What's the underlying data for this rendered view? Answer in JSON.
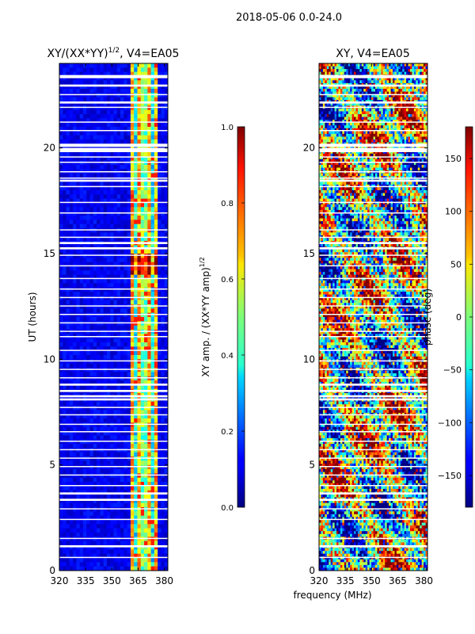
{
  "figure_title": "2018-05-06 0.0-24.0",
  "shared_xlabel": "frequency (MHz)",
  "chart_data": [
    {
      "type": "heatmap",
      "title_main": "XY/(XX*YY)",
      "title_exp": "1/2",
      "title_tail": ", V4=EA05",
      "xlabel": "",
      "ylabel": "UT (hours)",
      "xlim": [
        320,
        382
      ],
      "ylim": [
        0,
        24
      ],
      "xticks": [
        320,
        335,
        350,
        365,
        380
      ],
      "yticks": [
        0,
        5,
        10,
        15,
        20
      ],
      "colorbar": {
        "label_main": "XY amp. / (XX*YY amp)",
        "label_exp": "1/2",
        "range": [
          0.0,
          1.0
        ],
        "ticks": [
          0.0,
          0.2,
          0.4,
          0.6,
          0.8,
          1.0
        ],
        "tick_labels": [
          "0.0",
          "0.2",
          "0.4",
          "0.6",
          "0.8",
          "1.0"
        ],
        "colormap": "jet"
      },
      "active_band_mhz": [
        360,
        377
      ],
      "flagged_hours": [
        [
          23.3,
          23.45
        ],
        [
          22.9,
          23.0
        ],
        [
          22.5,
          22.55
        ],
        [
          22.1,
          22.2
        ],
        [
          21.9,
          21.95
        ],
        [
          21.2,
          21.25
        ],
        [
          20.8,
          20.85
        ],
        [
          20.05,
          20.2
        ],
        [
          19.8,
          20.0
        ],
        [
          19.55,
          19.6
        ],
        [
          19.3,
          19.35
        ],
        [
          18.85,
          18.9
        ],
        [
          18.55,
          18.6
        ],
        [
          18.4,
          18.5
        ],
        [
          18.15,
          18.2
        ],
        [
          17.4,
          17.45
        ],
        [
          16.9,
          16.95
        ],
        [
          16.1,
          16.15
        ],
        [
          15.75,
          15.8
        ],
        [
          15.45,
          15.55
        ],
        [
          15.2,
          15.3
        ],
        [
          14.9,
          14.95
        ],
        [
          14.4,
          14.45
        ],
        [
          13.8,
          13.85
        ],
        [
          13.3,
          13.35
        ],
        [
          12.9,
          12.95
        ],
        [
          12.5,
          12.55
        ],
        [
          12.1,
          12.15
        ],
        [
          11.7,
          11.75
        ],
        [
          11.3,
          11.35
        ],
        [
          11.05,
          11.1
        ],
        [
          10.4,
          10.45
        ],
        [
          9.9,
          9.95
        ],
        [
          9.5,
          9.55
        ],
        [
          9.1,
          9.15
        ],
        [
          8.75,
          8.85
        ],
        [
          8.45,
          8.55
        ],
        [
          8.2,
          8.3
        ],
        [
          8.05,
          8.15
        ],
        [
          7.7,
          7.75
        ],
        [
          7.35,
          7.4
        ],
        [
          6.9,
          6.95
        ],
        [
          6.55,
          6.6
        ],
        [
          6.1,
          6.15
        ],
        [
          5.7,
          5.75
        ],
        [
          5.3,
          5.35
        ],
        [
          4.9,
          4.95
        ],
        [
          4.5,
          4.55
        ],
        [
          4.0,
          4.05
        ],
        [
          3.6,
          3.7
        ],
        [
          3.3,
          3.4
        ],
        [
          2.9,
          2.95
        ],
        [
          2.4,
          2.45
        ],
        [
          1.5,
          1.55
        ],
        [
          1.1,
          1.2
        ],
        [
          0.6,
          0.65
        ]
      ]
    },
    {
      "type": "heatmap",
      "title": "XY, V4=EA05",
      "xlabel": "",
      "ylabel": "",
      "xlim": [
        320,
        382
      ],
      "ylim": [
        0,
        24
      ],
      "xticks": [
        320,
        335,
        350,
        365,
        380
      ],
      "yticks": [
        0,
        5,
        10,
        15,
        20
      ],
      "colorbar": {
        "label": "phase (deg)",
        "range": [
          -180,
          180
        ],
        "ticks": [
          -150,
          -100,
          -50,
          0,
          50,
          100,
          150
        ],
        "tick_labels": [
          "−150",
          "−100",
          "−50",
          "0",
          "50",
          "100",
          "150"
        ],
        "colormap": "jet"
      },
      "flagged_hours": [
        [
          23.3,
          23.45
        ],
        [
          22.9,
          23.0
        ],
        [
          22.5,
          22.55
        ],
        [
          22.1,
          22.2
        ],
        [
          21.9,
          21.95
        ],
        [
          21.2,
          21.25
        ],
        [
          20.8,
          20.85
        ],
        [
          20.05,
          20.2
        ],
        [
          19.8,
          20.0
        ],
        [
          19.55,
          19.6
        ],
        [
          19.3,
          19.35
        ],
        [
          18.85,
          18.9
        ],
        [
          18.55,
          18.6
        ],
        [
          18.4,
          18.5
        ],
        [
          18.15,
          18.2
        ],
        [
          17.4,
          17.45
        ],
        [
          16.9,
          16.95
        ],
        [
          16.1,
          16.15
        ],
        [
          15.75,
          15.8
        ],
        [
          15.45,
          15.55
        ],
        [
          15.2,
          15.3
        ],
        [
          14.9,
          14.95
        ],
        [
          14.4,
          14.45
        ],
        [
          13.8,
          13.85
        ],
        [
          13.3,
          13.35
        ],
        [
          12.9,
          12.95
        ],
        [
          12.5,
          12.55
        ],
        [
          12.1,
          12.15
        ],
        [
          11.7,
          11.75
        ],
        [
          11.3,
          11.35
        ],
        [
          11.05,
          11.1
        ],
        [
          10.4,
          10.45
        ],
        [
          9.9,
          9.95
        ],
        [
          9.5,
          9.55
        ],
        [
          9.1,
          9.15
        ],
        [
          8.75,
          8.85
        ],
        [
          8.45,
          8.55
        ],
        [
          8.2,
          8.3
        ],
        [
          8.05,
          8.15
        ],
        [
          7.7,
          7.75
        ],
        [
          7.35,
          7.4
        ],
        [
          6.9,
          6.95
        ],
        [
          6.55,
          6.6
        ],
        [
          6.1,
          6.15
        ],
        [
          5.7,
          5.75
        ],
        [
          5.3,
          5.35
        ],
        [
          4.9,
          4.95
        ],
        [
          4.5,
          4.55
        ],
        [
          4.0,
          4.05
        ],
        [
          3.6,
          3.7
        ],
        [
          3.3,
          3.4
        ],
        [
          2.9,
          2.95
        ],
        [
          2.4,
          2.45
        ],
        [
          1.5,
          1.55
        ],
        [
          1.1,
          1.2
        ],
        [
          0.6,
          0.65
        ]
      ]
    }
  ]
}
